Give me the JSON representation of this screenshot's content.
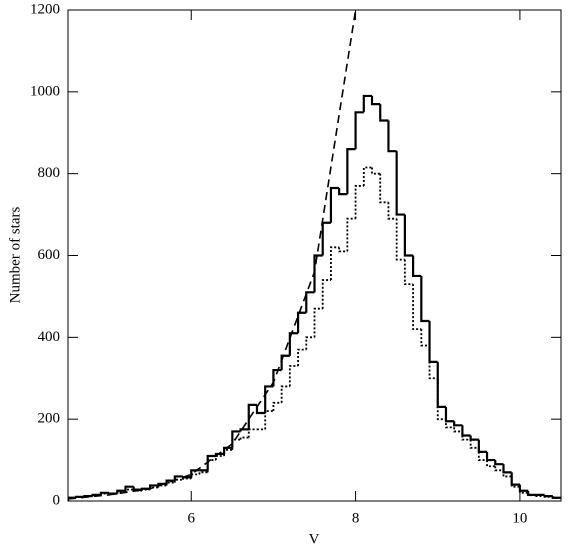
{
  "chart_data": {
    "type": "histogram",
    "xlabel": "V",
    "ylabel": "Number of stars",
    "xlim": [
      4.5,
      10.5
    ],
    "ylim": [
      0,
      1200
    ],
    "xticks": [
      6,
      8,
      10
    ],
    "yticks": [
      0,
      200,
      400,
      600,
      800,
      1000,
      1200
    ],
    "bins": [
      4.5,
      4.6,
      4.7,
      4.8,
      4.9,
      5.0,
      5.1,
      5.2,
      5.3,
      5.4,
      5.5,
      5.6,
      5.7,
      5.8,
      5.9,
      6.0,
      6.1,
      6.2,
      6.3,
      6.4,
      6.5,
      6.6,
      6.7,
      6.8,
      6.9,
      7.0,
      7.1,
      7.2,
      7.3,
      7.4,
      7.5,
      7.6,
      7.7,
      7.8,
      7.9,
      8.0,
      8.1,
      8.2,
      8.3,
      8.4,
      8.5,
      8.6,
      8.7,
      8.8,
      8.9,
      9.0,
      9.1,
      9.2,
      9.3,
      9.4,
      9.5,
      9.6,
      9.7,
      9.8,
      9.9,
      10.0,
      10.1,
      10.2,
      10.3,
      10.4,
      10.5
    ],
    "series": [
      {
        "color": "#000000",
        "style": "solid",
        "values": [
          8,
          10,
          12,
          15,
          20,
          18,
          25,
          35,
          28,
          30,
          38,
          42,
          50,
          60,
          58,
          75,
          75,
          110,
          115,
          130,
          170,
          175,
          235,
          215,
          280,
          320,
          355,
          410,
          460,
          510,
          600,
          680,
          765,
          750,
          860,
          950,
          990,
          970,
          930,
          855,
          700,
          600,
          550,
          440,
          340,
          230,
          195,
          185,
          160,
          150,
          120,
          100,
          90,
          70,
          40,
          25,
          15,
          15,
          12,
          8
        ]
      },
      {
        "color": "#000000",
        "style": "dotted",
        "values": [
          8,
          10,
          12,
          15,
          18,
          18,
          22,
          28,
          25,
          28,
          33,
          38,
          45,
          52,
          55,
          65,
          70,
          100,
          110,
          125,
          150,
          155,
          175,
          175,
          220,
          240,
          280,
          330,
          370,
          400,
          470,
          540,
          620,
          610,
          690,
          770,
          815,
          800,
          730,
          690,
          590,
          530,
          420,
          380,
          300,
          200,
          180,
          170,
          150,
          130,
          100,
          85,
          75,
          60,
          35,
          20,
          14,
          12,
          10,
          7
        ]
      }
    ],
    "lines": [
      {
        "color": "#000000",
        "style": "dashed",
        "x": [
          4.5,
          5.0,
          5.5,
          6.0,
          6.5,
          7.0,
          7.5,
          8.0
        ],
        "values": [
          5,
          15,
          30,
          65,
          140,
          290,
          560,
          1200
        ]
      }
    ]
  }
}
